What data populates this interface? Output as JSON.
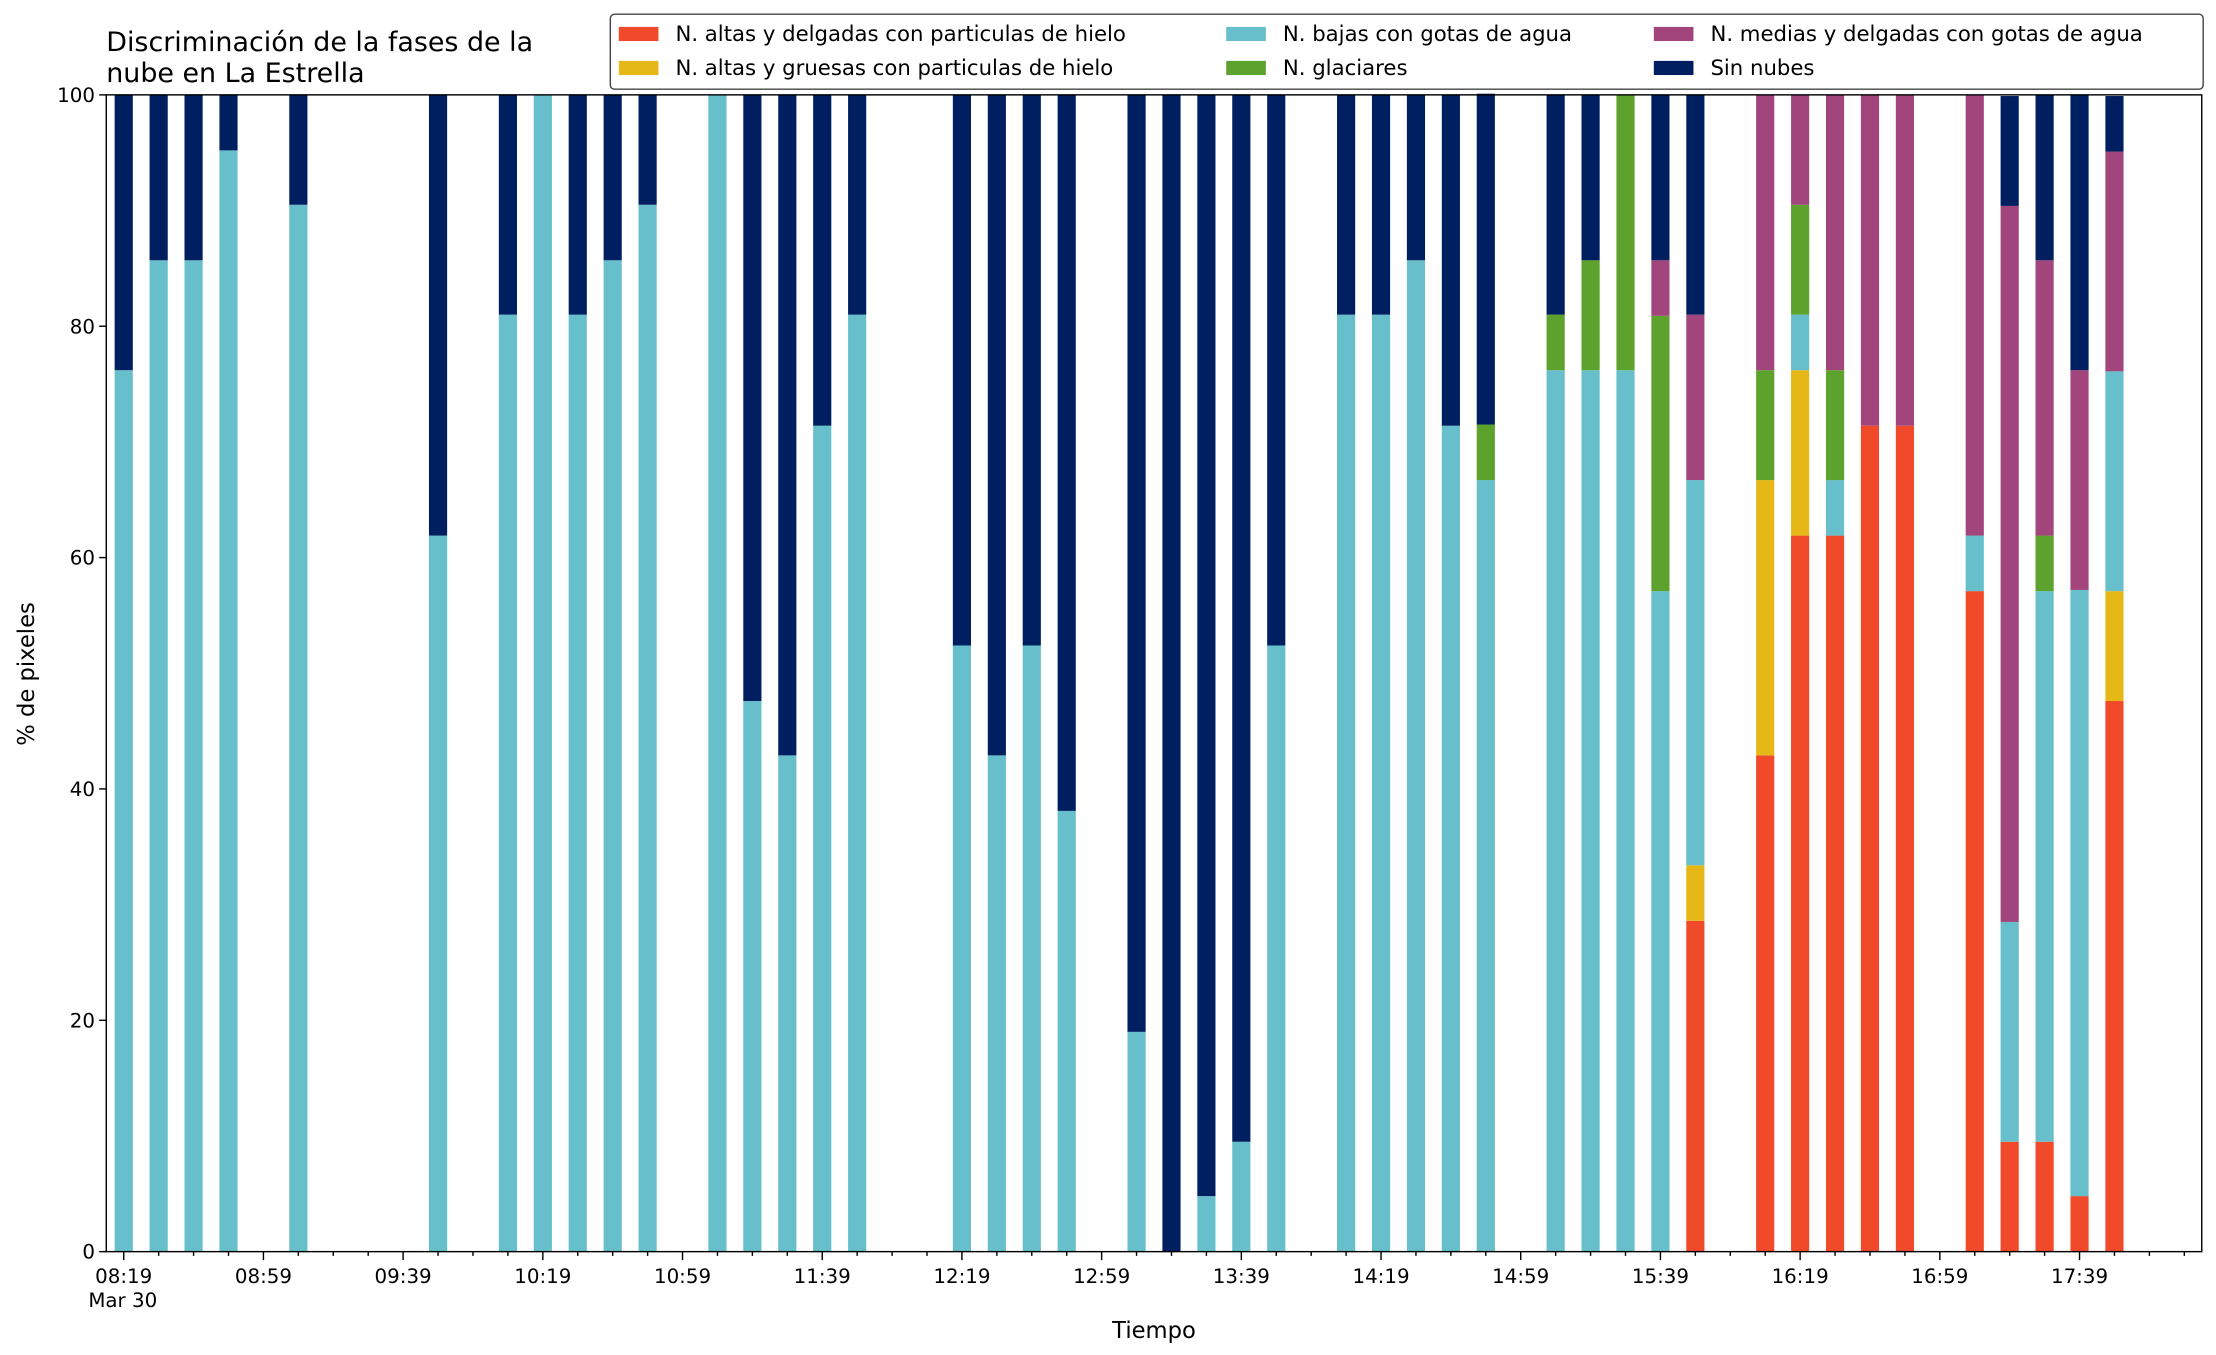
{
  "chart_data": {
    "type": "stacked_bar",
    "title": "Discriminación de la fases de la\nnube en La Estrella",
    "x_label": "Tiempo",
    "y_label": "% de pixeles",
    "x_date_label": "Mar 30",
    "categories": [
      "08:19",
      null,
      null,
      null,
      "08:59",
      null,
      null,
      null,
      "09:39",
      null,
      null,
      null,
      "10:19",
      null,
      null,
      null,
      "10:59",
      null,
      null,
      null,
      "11:39",
      null,
      null,
      null,
      "12:19",
      null,
      null,
      null,
      "12:59",
      null,
      null,
      null,
      "13:39",
      null,
      null,
      null,
      "14:19",
      null,
      null,
      null,
      "14:59",
      null,
      null,
      null,
      "15:39",
      null,
      null,
      null,
      "16:19",
      null,
      null,
      null,
      "16:59",
      null,
      null,
      null,
      "17:39",
      null,
      null
    ],
    "ylim": [
      0,
      100
    ],
    "yticks": [
      0,
      20,
      40,
      60,
      80,
      100
    ],
    "grid": false,
    "legend": "upper right",
    "legend_columns": 3,
    "series": [
      {
        "name": "N. altas y delgadas con particulas de hielo",
        "color": "#f04a2a",
        "values": [
          0,
          0,
          0,
          0,
          null,
          0,
          null,
          null,
          null,
          0,
          null,
          0,
          0,
          0,
          0,
          0,
          null,
          0,
          0,
          0,
          0,
          0,
          null,
          null,
          0,
          0,
          0,
          0,
          null,
          0,
          0,
          0,
          0,
          0,
          null,
          0,
          0,
          0,
          0,
          0,
          null,
          0,
          0,
          0,
          0,
          28.6,
          null,
          42.9,
          61.9,
          61.9,
          71.4,
          71.4,
          null,
          57.1,
          9.5,
          9.5,
          4.8,
          47.6,
          null
        ]
      },
      {
        "name": "N. altas y gruesas con particulas de hielo",
        "color": "#e6b817",
        "values": [
          0,
          0,
          0,
          0,
          null,
          0,
          null,
          null,
          null,
          0,
          null,
          0,
          0,
          0,
          0,
          0,
          null,
          0,
          0,
          0,
          0,
          0,
          null,
          null,
          0,
          0,
          0,
          0,
          null,
          0,
          0,
          0,
          0,
          0,
          null,
          0,
          0,
          0,
          0,
          0,
          null,
          0,
          0,
          0,
          0,
          4.8,
          null,
          23.8,
          14.3,
          0,
          0,
          0,
          null,
          0,
          0,
          0,
          0,
          9.5,
          null
        ]
      },
      {
        "name": "N. bajas con gotas de agua",
        "color": "#66bfca",
        "values": [
          76.2,
          85.7,
          85.7,
          95.2,
          null,
          90.5,
          null,
          null,
          null,
          61.9,
          null,
          81,
          100,
          81,
          85.7,
          90.5,
          null,
          100,
          47.6,
          42.9,
          71.4,
          81,
          null,
          null,
          52.4,
          42.9,
          52.4,
          38.1,
          null,
          19,
          0,
          4.8,
          9.5,
          52.4,
          null,
          81,
          81,
          85.7,
          71.4,
          66.7,
          null,
          76.2,
          76.2,
          76.2,
          57.1,
          33.3,
          null,
          0,
          4.8,
          4.8,
          0,
          0,
          null,
          4.8,
          19,
          47.6,
          52.4,
          19,
          null
        ]
      },
      {
        "name": "N. glaciares",
        "color": "#5ca22c",
        "values": [
          0,
          0,
          0,
          0,
          null,
          0,
          null,
          null,
          null,
          0,
          null,
          0,
          0,
          0,
          0,
          0,
          null,
          0,
          0,
          0,
          0,
          0,
          null,
          null,
          0,
          0,
          0,
          0,
          null,
          0,
          0,
          0,
          0,
          0,
          null,
          0,
          0,
          0,
          0,
          4.8,
          null,
          4.8,
          9.5,
          23.8,
          23.8,
          0,
          null,
          9.5,
          9.5,
          9.5,
          0,
          0,
          null,
          0,
          0,
          4.8,
          0,
          0,
          null
        ]
      },
      {
        "name": "N. medias y delgadas con gotas de agua",
        "color": "#a2457c",
        "values": [
          0,
          0,
          0,
          0,
          null,
          0,
          null,
          null,
          null,
          0,
          null,
          0,
          0,
          0,
          0,
          0,
          null,
          0,
          0,
          0,
          0,
          0,
          null,
          null,
          0,
          0,
          0,
          0,
          null,
          0,
          0,
          0,
          0,
          0,
          null,
          0,
          0,
          0,
          0,
          0,
          null,
          0,
          0,
          0,
          4.8,
          14.3,
          null,
          23.8,
          9.5,
          23.8,
          28.6,
          28.6,
          null,
          38.1,
          61.9,
          23.8,
          19,
          19,
          null
        ]
      },
      {
        "name": "Sin nubes",
        "color": "#001f60",
        "values": [
          23.8,
          14.3,
          14.3,
          4.8,
          null,
          9.5,
          null,
          null,
          null,
          38.1,
          null,
          19,
          0,
          19,
          14.3,
          9.5,
          null,
          0,
          52.4,
          57.1,
          28.6,
          19,
          null,
          null,
          47.6,
          57.1,
          47.6,
          61.9,
          null,
          81,
          100,
          95.2,
          90.5,
          47.6,
          null,
          19,
          19,
          14.3,
          28.6,
          28.6,
          null,
          19,
          14.3,
          0,
          14.3,
          19,
          null,
          0,
          0,
          0,
          0,
          0,
          null,
          0,
          9.5,
          14.3,
          23.8,
          4.8,
          null
        ]
      }
    ]
  }
}
